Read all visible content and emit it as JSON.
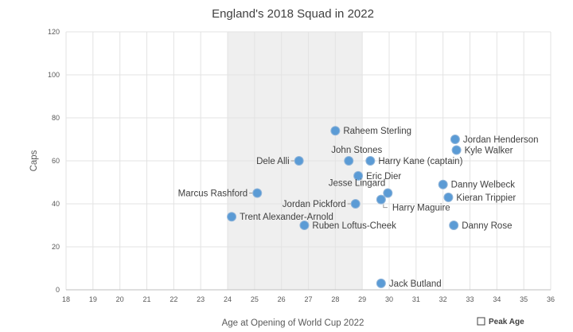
{
  "chart_data": {
    "type": "scatter",
    "title": "England's 2018 Squad in 2022",
    "xlabel": "Age at Opening of World Cup 2022",
    "ylabel": "Caps",
    "xlim": [
      18,
      36
    ],
    "ylim": [
      0,
      120
    ],
    "xticks": [
      18,
      19,
      20,
      21,
      22,
      23,
      24,
      25,
      26,
      27,
      28,
      29,
      30,
      31,
      32,
      33,
      34,
      35,
      36
    ],
    "yticks": [
      0,
      20,
      40,
      60,
      80,
      100,
      120
    ],
    "grid": true,
    "shaded_band": {
      "label": "Peak Age",
      "from": 24,
      "to": 29
    },
    "legend": {
      "placement": "bottom-right",
      "entries": [
        "Peak Age"
      ]
    },
    "marker_color": "#5b9bd5",
    "band_color": "#efefef",
    "points": [
      {
        "name": "Raheem Sterling",
        "x": 28.0,
        "y": 74,
        "label_pos": "right"
      },
      {
        "name": "Jordan Henderson",
        "x": 32.45,
        "y": 70,
        "label_pos": "right"
      },
      {
        "name": "Kyle Walker",
        "x": 32.5,
        "y": 65,
        "label_pos": "right"
      },
      {
        "name": "Dele Alli",
        "x": 26.65,
        "y": 60,
        "label_pos": "left"
      },
      {
        "name": "John Stones",
        "x": 28.5,
        "y": 60,
        "label_pos": "above"
      },
      {
        "name": "Harry Kane (captain)",
        "x": 29.3,
        "y": 60,
        "label_pos": "right"
      },
      {
        "name": "Eric Dier",
        "x": 28.85,
        "y": 53,
        "label_pos": "right"
      },
      {
        "name": "Danny Welbeck",
        "x": 32.0,
        "y": 49,
        "label_pos": "right"
      },
      {
        "name": "Jesse Lingard",
        "x": 29.95,
        "y": 45,
        "label_pos": "above-left"
      },
      {
        "name": "Marcus Rashford",
        "x": 25.1,
        "y": 45,
        "label_pos": "left"
      },
      {
        "name": "Harry Maguire",
        "x": 29.7,
        "y": 42,
        "label_pos": "below-right"
      },
      {
        "name": "Kieran Trippier",
        "x": 32.2,
        "y": 43,
        "label_pos": "right"
      },
      {
        "name": "Jordan Pickford",
        "x": 28.75,
        "y": 40,
        "label_pos": "left"
      },
      {
        "name": "Trent Alexander-Arnold",
        "x": 24.15,
        "y": 34,
        "label_pos": "right"
      },
      {
        "name": "Ruben Loftus-Cheek",
        "x": 26.85,
        "y": 30,
        "label_pos": "right"
      },
      {
        "name": "Danny Rose",
        "x": 32.4,
        "y": 30,
        "label_pos": "right"
      },
      {
        "name": "Jack Butland",
        "x": 29.7,
        "y": 3,
        "label_pos": "right"
      }
    ]
  }
}
